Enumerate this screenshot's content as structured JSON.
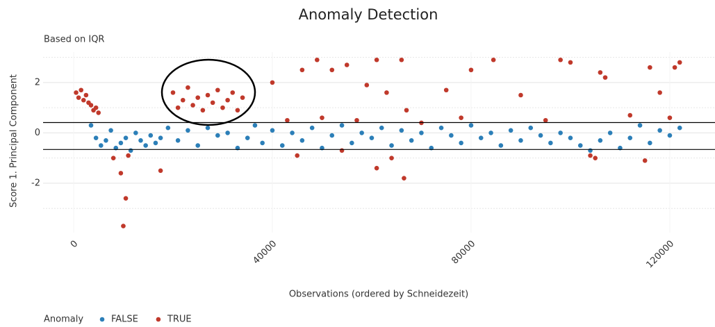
{
  "chart_data": {
    "type": "scatter",
    "title": "Anomaly Detection",
    "subtitle": "Based on IQR",
    "x_label": "Observations (ordered by Schneidezeit)",
    "y_label": "Score 1. Principal Component",
    "legend_title": "Anomaly",
    "legend": "bottom-left",
    "grid": true,
    "xlim": [
      -6150,
      129100
    ],
    "ylim": [
      -3.96,
      3.21
    ],
    "xticks": [
      0,
      40000,
      80000,
      120000
    ],
    "yticks": [
      -2,
      0,
      2
    ],
    "minor_yticks": [
      -3,
      -1,
      1,
      3
    ],
    "hlines": [
      0.41,
      -0.66
    ],
    "series": [
      {
        "name": "FALSE",
        "color": "#2c7fb8",
        "x": [
          3500,
          4500,
          5500,
          6500,
          7500,
          8500,
          9500,
          10500,
          11500,
          12500,
          13500,
          14500,
          15500,
          16500,
          17500,
          19000,
          21000,
          23000,
          25000,
          27000,
          29000,
          31000,
          33000,
          35000,
          36500,
          38000,
          40000,
          42000,
          44000,
          46000,
          48000,
          50000,
          52000,
          54000,
          56000,
          58000,
          60000,
          62000,
          64000,
          66000,
          68000,
          70000,
          72000,
          74000,
          76000,
          78000,
          80000,
          82000,
          84000,
          86000,
          88000,
          90000,
          92000,
          94000,
          96000,
          98000,
          100000,
          102000,
          104000,
          106000,
          108000,
          110000,
          112000,
          114000,
          116000,
          118000,
          120000,
          122000
        ],
        "values": [
          0.3,
          -0.2,
          -0.5,
          -0.3,
          0.1,
          -0.6,
          -0.4,
          -0.2,
          -0.7,
          0.0,
          -0.3,
          -0.5,
          -0.1,
          -0.4,
          -0.2,
          0.2,
          -0.3,
          0.1,
          -0.5,
          0.2,
          -0.1,
          0.0,
          -0.6,
          -0.2,
          0.3,
          -0.4,
          0.1,
          -0.5,
          0.0,
          -0.3,
          0.2,
          -0.6,
          -0.1,
          0.3,
          -0.4,
          0.0,
          -0.2,
          0.2,
          -0.5,
          0.1,
          -0.3,
          0.0,
          -0.6,
          0.2,
          -0.1,
          -0.4,
          0.3,
          -0.2,
          0.0,
          -0.5,
          0.1,
          -0.3,
          0.2,
          -0.1,
          -0.4,
          0.0,
          -0.2,
          -0.5,
          -0.7,
          -0.3,
          0.0,
          -0.6,
          -0.2,
          0.3,
          -0.4,
          0.1,
          -0.1,
          0.2
        ]
      },
      {
        "name": "TRUE",
        "color": "#c0392b",
        "x": [
          500,
          1000,
          1500,
          2000,
          2500,
          3000,
          3500,
          4000,
          4500,
          5000,
          20000,
          21000,
          22000,
          23000,
          24000,
          25000,
          26000,
          27000,
          28000,
          29000,
          30000,
          31000,
          32000,
          33000,
          34000,
          9500,
          10000,
          10500,
          11000,
          8000,
          17500,
          40000,
          46000,
          49000,
          52000,
          55000,
          59000,
          61000,
          63000,
          66000,
          67000,
          75000,
          80000,
          84500,
          90000,
          98000,
          100000,
          106000,
          107000,
          116000,
          118000,
          121000,
          122000,
          43000,
          50000,
          57000,
          70000,
          78000,
          95000,
          112000,
          120000,
          45000,
          54000,
          61000,
          64000,
          66500,
          104000,
          105000,
          115000
        ],
        "values": [
          1.6,
          1.4,
          1.7,
          1.3,
          1.5,
          1.2,
          1.1,
          0.9,
          1.0,
          0.8,
          1.6,
          1.0,
          1.3,
          1.8,
          1.1,
          1.4,
          0.9,
          1.5,
          1.2,
          1.7,
          1.0,
          1.3,
          1.6,
          0.9,
          1.4,
          -1.6,
          -3.7,
          -2.6,
          -0.9,
          -1.0,
          -1.5,
          2.0,
          2.5,
          2.9,
          2.5,
          2.7,
          1.9,
          2.9,
          1.6,
          2.9,
          0.9,
          1.7,
          2.5,
          2.9,
          1.5,
          2.9,
          2.8,
          2.4,
          2.2,
          2.6,
          1.6,
          2.6,
          2.8,
          0.5,
          0.6,
          0.5,
          0.4,
          0.6,
          0.5,
          0.7,
          0.6,
          -0.9,
          -0.7,
          -1.4,
          -1.0,
          -1.8,
          -0.9,
          -1.0,
          -1.1
        ]
      }
    ]
  }
}
